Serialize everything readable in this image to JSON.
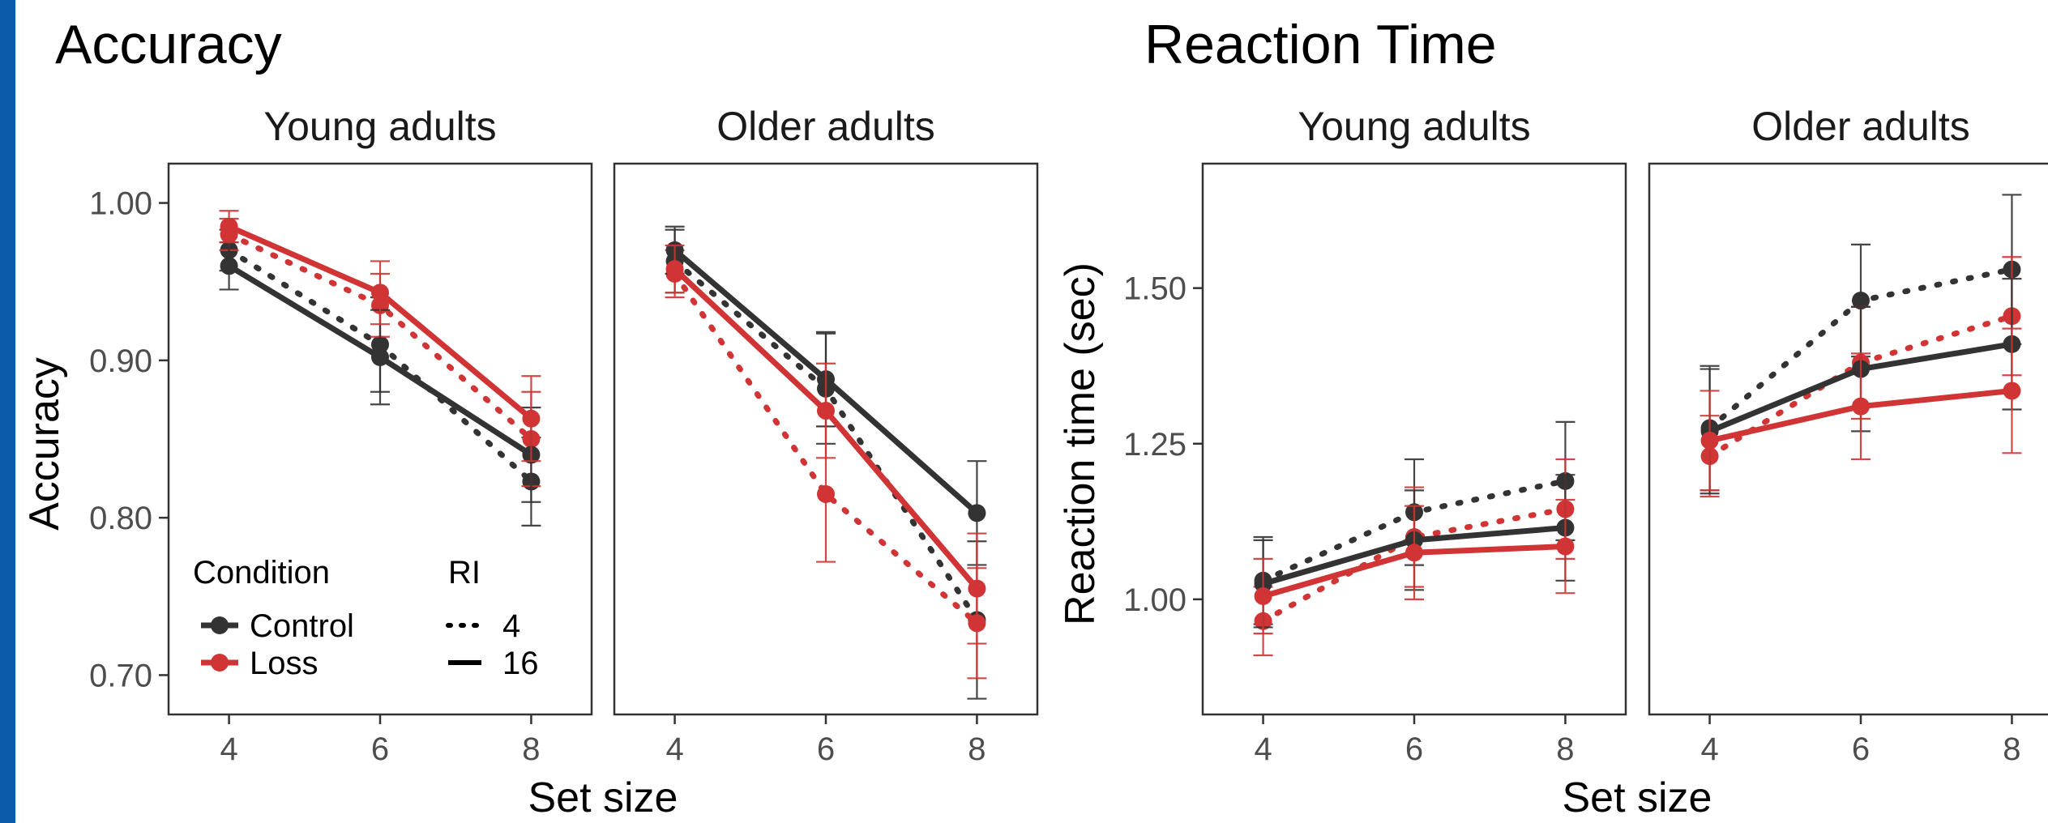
{
  "chart_data": [
    {
      "type": "line",
      "title": "Accuracy",
      "ylabel": "Accuracy",
      "xlabel": "Set size",
      "x": [
        4,
        6,
        8
      ],
      "x_ticks": [
        "4",
        "6",
        "8"
      ],
      "ylim": [
        0.675,
        1.025
      ],
      "y_ticks": [
        "0.70",
        "0.80",
        "0.90",
        "1.00"
      ],
      "y_tick_values": [
        0.7,
        0.8,
        0.9,
        1.0
      ],
      "grid": false,
      "legend": "inside-bottom-left",
      "panels": [
        {
          "name": "Young adults",
          "series": [
            {
              "condition": "Control",
              "ri": "4",
              "values": [
                0.97,
                0.91,
                0.823
              ],
              "err": [
                0.013,
                0.03,
                0.028
              ]
            },
            {
              "condition": "Control",
              "ri": "16",
              "values": [
                0.96,
                0.902,
                0.84
              ],
              "err": [
                0.015,
                0.03,
                0.03
              ]
            },
            {
              "condition": "Loss",
              "ri": "4",
              "values": [
                0.98,
                0.935,
                0.85
              ],
              "err": [
                0.01,
                0.02,
                0.03
              ]
            },
            {
              "condition": "Loss",
              "ri": "16",
              "values": [
                0.985,
                0.943,
                0.863
              ],
              "err": [
                0.01,
                0.02,
                0.027
              ]
            }
          ]
        },
        {
          "name": "Older adults",
          "series": [
            {
              "condition": "Control",
              "ri": "4",
              "values": [
                0.963,
                0.882,
                0.735
              ],
              "err": [
                0.02,
                0.035,
                0.05
              ]
            },
            {
              "condition": "Control",
              "ri": "16",
              "values": [
                0.97,
                0.888,
                0.803
              ],
              "err": [
                0.015,
                0.03,
                0.033
              ]
            },
            {
              "condition": "Loss",
              "ri": "4",
              "values": [
                0.955,
                0.815,
                0.733
              ],
              "err": [
                0.015,
                0.043,
                0.035
              ]
            },
            {
              "condition": "Loss",
              "ri": "16",
              "values": [
                0.958,
                0.868,
                0.755
              ],
              "err": [
                0.015,
                0.03,
                0.035
              ]
            }
          ]
        }
      ]
    },
    {
      "type": "line",
      "title": "Reaction Time",
      "ylabel": "Reaction time (sec)",
      "xlabel": "Set size",
      "x": [
        4,
        6,
        8
      ],
      "x_ticks": [
        "4",
        "6",
        "8"
      ],
      "ylim": [
        0.815,
        1.7
      ],
      "y_ticks": [
        "1.00",
        "1.25",
        "1.50"
      ],
      "y_tick_values": [
        1.0,
        1.25,
        1.5
      ],
      "grid": false,
      "panels": [
        {
          "name": "Young adults",
          "series": [
            {
              "condition": "Control",
              "ri": "4",
              "values": [
                1.03,
                1.14,
                1.19
              ],
              "err": [
                0.07,
                0.085,
                0.095
              ]
            },
            {
              "condition": "Control",
              "ri": "16",
              "values": [
                1.025,
                1.095,
                1.115
              ],
              "err": [
                0.07,
                0.08,
                0.085
              ]
            },
            {
              "condition": "Loss",
              "ri": "4",
              "values": [
                0.965,
                1.1,
                1.145
              ],
              "err": [
                0.055,
                0.08,
                0.08
              ]
            },
            {
              "condition": "Loss",
              "ri": "16",
              "values": [
                1.005,
                1.075,
                1.085
              ],
              "err": [
                0.06,
                0.075,
                0.075
              ]
            }
          ]
        },
        {
          "name": "Older adults",
          "series": [
            {
              "condition": "Control",
              "ri": "4",
              "values": [
                1.275,
                1.48,
                1.53
              ],
              "err": [
                0.1,
                0.09,
                0.12
              ]
            },
            {
              "condition": "Control",
              "ri": "16",
              "values": [
                1.27,
                1.37,
                1.41
              ],
              "err": [
                0.1,
                0.1,
                0.105
              ]
            },
            {
              "condition": "Loss",
              "ri": "4",
              "values": [
                1.23,
                1.38,
                1.455
              ],
              "err": [
                0.065,
                0.09,
                0.095
              ]
            },
            {
              "condition": "Loss",
              "ri": "16",
              "values": [
                1.255,
                1.31,
                1.335
              ],
              "err": [
                0.08,
                0.085,
                0.1
              ]
            }
          ]
        }
      ]
    }
  ],
  "legend": {
    "condition_title": "Condition",
    "conditions": [
      {
        "label": "Control",
        "color": "#333333"
      },
      {
        "label": "Loss",
        "color": "#d03434"
      }
    ],
    "ri_title": "RI",
    "ri_levels": [
      {
        "label": "4",
        "linetype": "dotted"
      },
      {
        "label": "16",
        "linetype": "solid"
      }
    ]
  },
  "colors": {
    "Control": "#333333",
    "Loss": "#d03434",
    "axis_frame": "#333333",
    "tick_text": "#4d4d4d",
    "left_bar": "#0a5aa8"
  }
}
